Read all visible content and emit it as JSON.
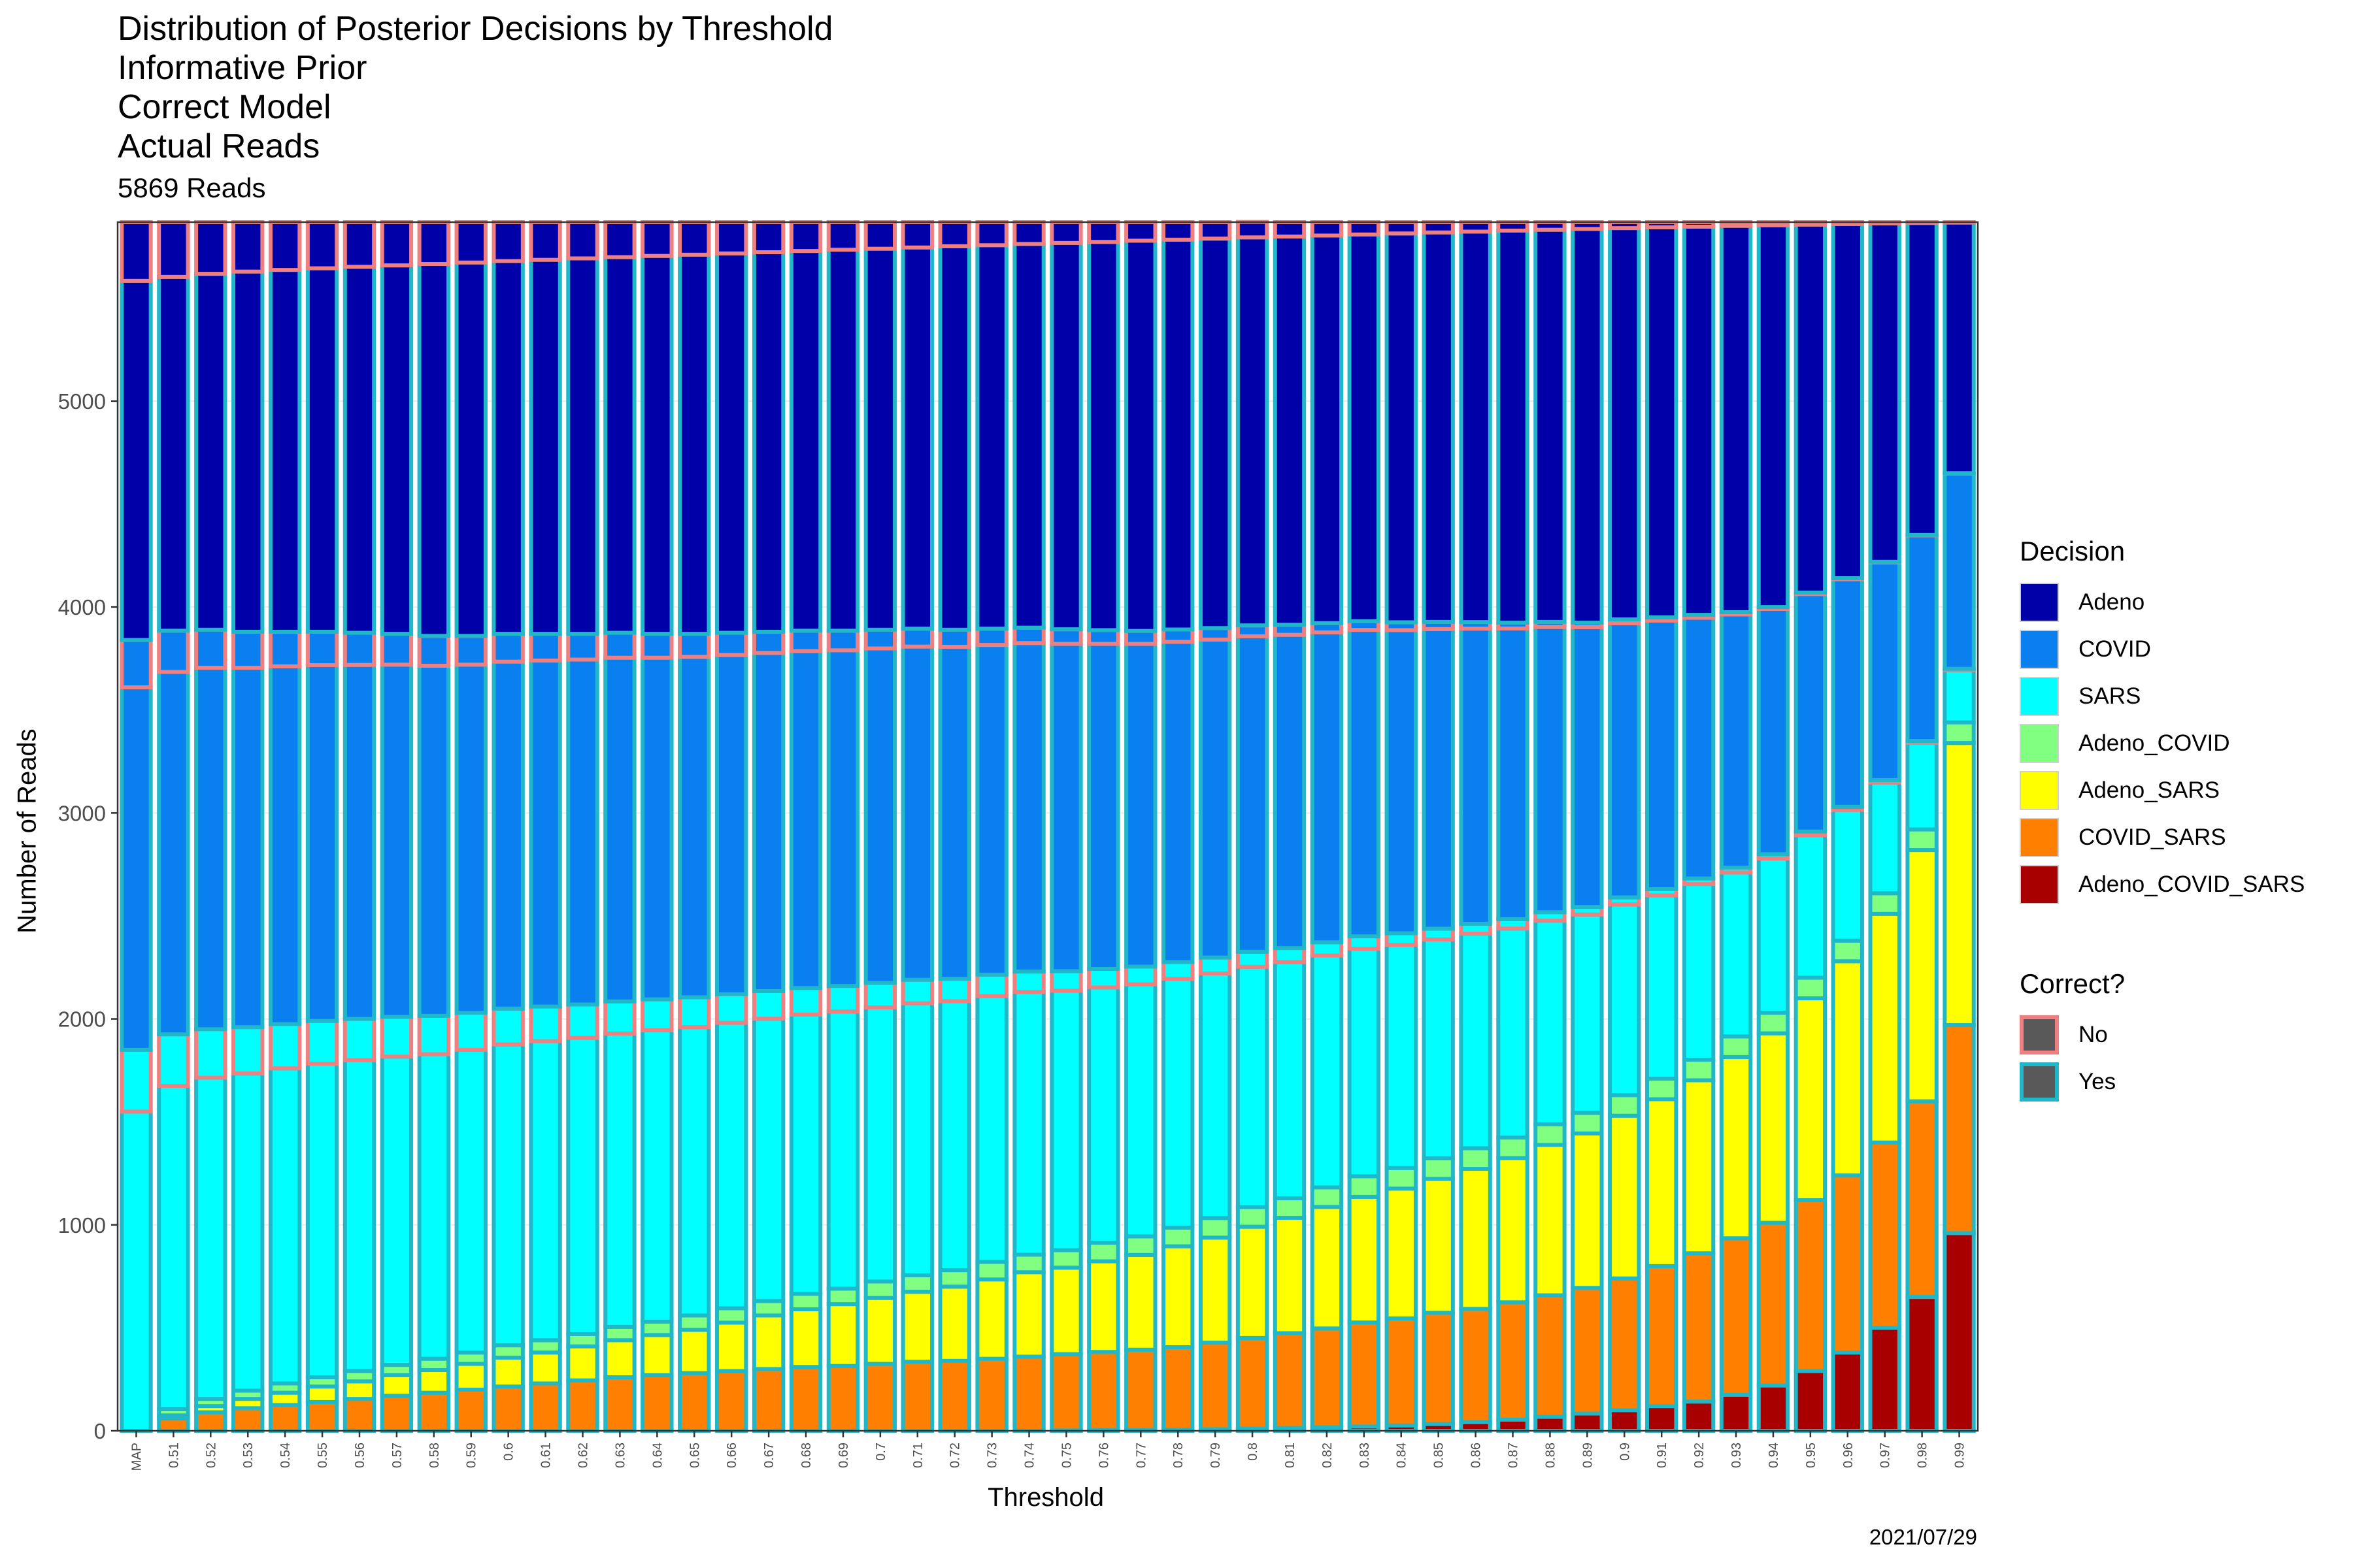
{
  "title_lines": [
    "Distribution of Posterior Decisions by Threshold",
    "Informative Prior",
    "Correct Model",
    "Actual Reads"
  ],
  "subtitle": "5869 Reads",
  "caption": "2021/07/29",
  "legends": {
    "decision": {
      "title": "Decision",
      "items": [
        {
          "label": "Adeno",
          "color": "#0000a8"
        },
        {
          "label": "COVID",
          "color": "#0a80f0"
        },
        {
          "label": "SARS",
          "color": "#00ffff"
        },
        {
          "label": "Adeno_COVID",
          "color": "#80ff80"
        },
        {
          "label": "Adeno_SARS",
          "color": "#ffff00"
        },
        {
          "label": "COVID_SARS",
          "color": "#ff8000"
        },
        {
          "label": "Adeno_COVID_SARS",
          "color": "#a80000"
        }
      ]
    },
    "correct": {
      "title": "Correct?",
      "items": [
        {
          "label": "No",
          "color": "#f08080"
        },
        {
          "label": "Yes",
          "color": "#20b8c8"
        }
      ]
    }
  },
  "chart_data": {
    "type": "bar",
    "stacked": true,
    "title": "Distribution of Posterior Decisions by Threshold",
    "subtitle": "5869 Reads",
    "xlabel": "Threshold",
    "ylabel": "Number of Reads",
    "ylim": [
      0,
      5869
    ],
    "yticks": [
      0,
      1000,
      2000,
      3000,
      4000,
      5000
    ],
    "fill_colors": {
      "Adeno": "#0000a8",
      "COVID": "#0a80f0",
      "SARS": "#00ffff",
      "Adeno_COVID": "#80ff80",
      "Adeno_SARS": "#ffff00",
      "COVID_SARS": "#ff8000",
      "Adeno_COVID_SARS": "#a80000"
    },
    "outline_colors": {
      "No": "#f08080",
      "Yes": "#20b8c8"
    },
    "stack_order_bottom_to_top": [
      "Adeno_COVID_SARS",
      "COVID_SARS",
      "Adeno_SARS",
      "Adeno_COVID",
      "SARS",
      "COVID",
      "Adeno"
    ],
    "categories": [
      "MAP",
      "0.51",
      "0.52",
      "0.53",
      "0.54",
      "0.55",
      "0.56",
      "0.57",
      "0.58",
      "0.59",
      "0.6",
      "0.61",
      "0.62",
      "0.63",
      "0.64",
      "0.65",
      "0.66",
      "0.67",
      "0.68",
      "0.69",
      "0.7",
      "0.71",
      "0.72",
      "0.73",
      "0.74",
      "0.75",
      "0.76",
      "0.77",
      "0.78",
      "0.79",
      "0.8",
      "0.81",
      "0.82",
      "0.83",
      "0.84",
      "0.85",
      "0.86",
      "0.87",
      "0.88",
      "0.89",
      "0.9",
      "0.91",
      "0.92",
      "0.93",
      "0.94",
      "0.95",
      "0.96",
      "0.97",
      "0.98",
      "0.99"
    ],
    "series": [
      {
        "name": "Adeno_COVID_SARS",
        "values": [
          0,
          0,
          0,
          0,
          0,
          0,
          0,
          0,
          0,
          0,
          0,
          0,
          0,
          0,
          0,
          0,
          0,
          0,
          0,
          0,
          0,
          0,
          0,
          0,
          0,
          2,
          3,
          4,
          6,
          8,
          11,
          14,
          17,
          21,
          26,
          33,
          42,
          54,
          68,
          84,
          100,
          120,
          142,
          175,
          220,
          290,
          380,
          500,
          650,
          960
        ]
      },
      {
        "name": "COVID_SARS",
        "values": [
          0,
          60,
          90,
          110,
          125,
          140,
          155,
          170,
          185,
          200,
          215,
          230,
          245,
          260,
          270,
          280,
          290,
          300,
          310,
          315,
          325,
          335,
          340,
          350,
          360,
          370,
          380,
          390,
          400,
          420,
          440,
          460,
          480,
          505,
          520,
          540,
          550,
          570,
          590,
          610,
          640,
          680,
          720,
          760,
          790,
          830,
          860,
          900,
          950,
          1010
        ]
      },
      {
        "name": "Adeno_SARS",
        "values": [
          0,
          15,
          30,
          45,
          60,
          75,
          85,
          100,
          110,
          125,
          140,
          150,
          165,
          180,
          195,
          210,
          235,
          260,
          280,
          300,
          320,
          340,
          360,
          385,
          410,
          420,
          440,
          460,
          490,
          510,
          540,
          560,
          590,
          610,
          630,
          650,
          680,
          700,
          730,
          750,
          790,
          810,
          840,
          880,
          920,
          980,
          1040,
          1110,
          1220,
          1370
        ]
      },
      {
        "name": "Adeno_COVID",
        "values": [
          0,
          30,
          35,
          40,
          45,
          45,
          50,
          50,
          55,
          55,
          60,
          60,
          60,
          65,
          65,
          70,
          70,
          70,
          75,
          75,
          80,
          80,
          80,
          85,
          85,
          85,
          90,
          90,
          90,
          95,
          95,
          95,
          95,
          100,
          100,
          100,
          100,
          100,
          100,
          100,
          100,
          100,
          100,
          100,
          100,
          100,
          100,
          100,
          100,
          100
        ]
      },
      {
        "name": "SARS",
        "values": [
          1850,
          1820,
          1795,
          1765,
          1745,
          1730,
          1710,
          1690,
          1665,
          1650,
          1635,
          1620,
          1600,
          1580,
          1565,
          1545,
          1525,
          1505,
          1485,
          1470,
          1450,
          1435,
          1415,
          1395,
          1375,
          1355,
          1330,
          1310,
          1290,
          1265,
          1240,
          1215,
          1190,
          1165,
          1140,
          1115,
          1090,
          1060,
          1030,
          1000,
          960,
          920,
          880,
          820,
          770,
          710,
          650,
          550,
          430,
          260
        ]
      },
      {
        "name": "COVID",
        "values": [
          1990,
          1960,
          1940,
          1920,
          1905,
          1890,
          1875,
          1860,
          1845,
          1830,
          1820,
          1810,
          1800,
          1790,
          1775,
          1765,
          1755,
          1745,
          1735,
          1725,
          1715,
          1705,
          1695,
          1680,
          1670,
          1660,
          1645,
          1630,
          1615,
          1600,
          1585,
          1570,
          1550,
          1530,
          1510,
          1490,
          1465,
          1440,
          1410,
          1380,
          1350,
          1320,
          1280,
          1240,
          1200,
          1160,
          1110,
          1060,
          1000,
          950
        ]
      },
      {
        "name": "Adeno",
        "values": [
          2029,
          1984,
          1979,
          1989,
          1989,
          1989,
          1994,
          1999,
          2009,
          2009,
          1999,
          1999,
          1999,
          1994,
          1999,
          1999,
          1994,
          1989,
          1984,
          1984,
          1979,
          1974,
          1979,
          1974,
          1969,
          1977,
          1981,
          1985,
          1978,
          1971,
          1959,
          1955,
          1947,
          1938,
          1943,
          1941,
          1942,
          1945,
          1941,
          1945,
          1929,
          1919,
          1907,
          1894,
          1869,
          1799,
          1729,
          1649,
          1519,
          1219
        ]
      }
    ],
    "incorrect": {
      "Adeno": [
        285,
        266,
        251,
        240,
        232,
        224,
        217,
        210,
        203,
        196,
        189,
        183,
        176,
        170,
        164,
        158,
        152,
        146,
        140,
        134,
        129,
        123,
        117,
        112,
        106,
        101,
        96,
        90,
        85,
        80,
        75,
        70,
        65,
        60,
        55,
        50,
        46,
        41,
        37,
        33,
        29,
        25,
        22,
        18,
        15,
        12,
        9,
        6,
        4,
        2
      ],
      "COVID": [
        230,
        200,
        185,
        175,
        168,
        162,
        156,
        150,
        145,
        140,
        135,
        130,
        125,
        121,
        116,
        112,
        108,
        103,
        99,
        95,
        91,
        87,
        83,
        79,
        75,
        71,
        67,
        63,
        60,
        56,
        53,
        49,
        45,
        42,
        38,
        35,
        32,
        28,
        25,
        22,
        19,
        16,
        14,
        11,
        9,
        7,
        5,
        3,
        2,
        1
      ],
      "SARS": [
        300,
        250,
        235,
        225,
        215,
        207,
        200,
        193,
        186,
        180,
        174,
        168,
        162,
        156,
        150,
        145,
        139,
        134,
        129,
        124,
        119,
        114,
        109,
        104,
        99,
        95,
        90,
        86,
        81,
        77,
        73,
        68,
        64,
        60,
        56,
        52,
        48,
        45,
        41,
        37,
        34,
        30,
        27,
        24,
        21,
        18,
        15,
        12,
        9,
        6
      ]
    }
  }
}
